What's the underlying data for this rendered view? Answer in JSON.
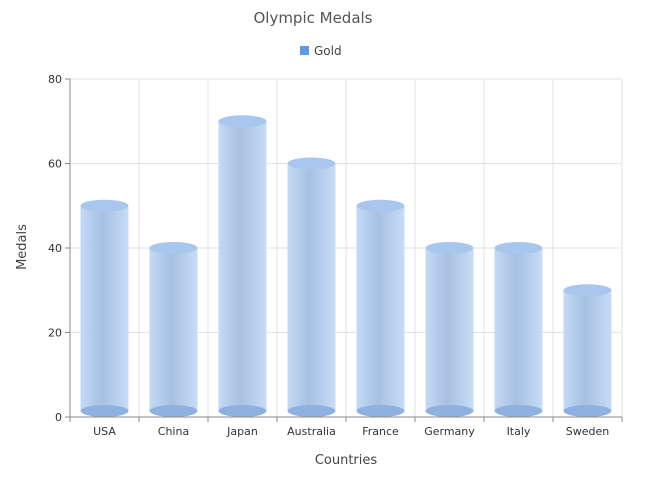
{
  "chart_data": {
    "type": "bar",
    "title": "Olympic Medals",
    "categories": [
      "USA",
      "China",
      "Japan",
      "Australia",
      "France",
      "Germany",
      "Italy",
      "Sweden"
    ],
    "series": [
      {
        "name": "Gold",
        "values": [
          50,
          40,
          70,
          60,
          50,
          40,
          40,
          30
        ],
        "color": "#a3c2ec"
      }
    ],
    "xlabel": "Countries",
    "ylabel": "Medals",
    "ylim": [
      0,
      80
    ],
    "yticks": [
      0,
      20,
      40,
      60,
      80
    ],
    "grid": true,
    "legend_position": "top-center",
    "legend_color": "#5b9be6"
  }
}
